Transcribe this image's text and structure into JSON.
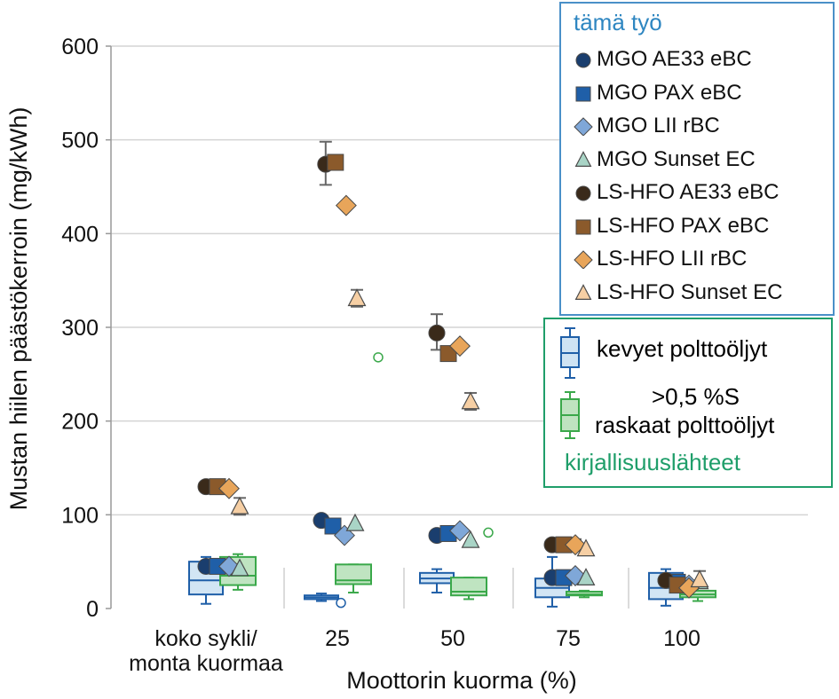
{
  "chart_data": {
    "type": "scatter",
    "ylabel": "Mustan hiilen päästökerroin (mg/kWh)",
    "xlabel": "Moottorin kuorma (%)",
    "ylim": [
      0,
      600
    ],
    "yticks": [
      0,
      100,
      200,
      300,
      400,
      500,
      600
    ],
    "grid": true,
    "categories": [
      [
        "koko sykli/",
        "monta kuormaa"
      ],
      "25",
      "50",
      "75",
      "100"
    ],
    "series": [
      {
        "name": "MGO AE33 eBC",
        "marker": "circle",
        "color": "#1a3e6e",
        "values": [
          45,
          94,
          78,
          33,
          30
        ]
      },
      {
        "name": "MGO PAX eBC",
        "marker": "square",
        "color": "#1f5fa8",
        "values": [
          45,
          88,
          80,
          33,
          28
        ]
      },
      {
        "name": "MGO LII rBC",
        "marker": "diamond",
        "color": "#7fa7d8",
        "values": [
          45,
          78,
          83,
          35,
          25
        ]
      },
      {
        "name": "MGO Sunset EC",
        "marker": "triangle",
        "color": "#a9d4c6",
        "values": [
          42,
          90,
          72,
          32,
          28
        ]
      },
      {
        "name": "LS-HFO AE33 eBC",
        "marker": "circle",
        "color": "#3a2a1a",
        "values": [
          130,
          474,
          294,
          68,
          30
        ]
      },
      {
        "name": "LS-HFO PAX eBC",
        "marker": "square",
        "color": "#8b5a2b",
        "values": [
          130,
          476,
          272,
          68,
          25
        ]
      },
      {
        "name": "LS-HFO LII rBC",
        "marker": "diamond",
        "color": "#e8a55a",
        "values": [
          128,
          430,
          280,
          68,
          22
        ]
      },
      {
        "name": "LS-HFO Sunset EC",
        "marker": "triangle",
        "color": "#f6cfa4",
        "values": [
          108,
          330,
          220,
          63,
          30
        ]
      }
    ],
    "error_bars": [
      {
        "series": "LS-HFO AE33 eBC",
        "category": "25",
        "low": 452,
        "high": 498
      },
      {
        "series": "LS-HFO Sunset EC",
        "category": "25",
        "low": 322,
        "high": 340
      },
      {
        "series": "LS-HFO AE33 eBC",
        "category": "50",
        "low": 276,
        "high": 314
      },
      {
        "series": "LS-HFO Sunset EC",
        "category": "50",
        "low": 212,
        "high": 230
      },
      {
        "series": "LS-HFO Sunset EC",
        "category": "koko sykli/monta kuormaa",
        "low": 100,
        "high": 118
      },
      {
        "series": "LS-HFO LII rBC",
        "category": "75",
        "low": 62,
        "high": 74
      },
      {
        "series": "LS-HFO Sunset EC",
        "category": "100",
        "low": 22,
        "high": 40
      }
    ],
    "boxplots": {
      "light_fuels": [
        {
          "category": "koko sykli/monta kuormaa",
          "min": 5,
          "q1": 15,
          "median": 30,
          "q3": 50,
          "max": 55
        },
        {
          "category": "25",
          "min": 8,
          "q1": 10,
          "median": 12,
          "q3": 14,
          "max": 16,
          "outliers": [
            6
          ]
        },
        {
          "category": "50",
          "min": 17,
          "q1": 27,
          "median": 32,
          "q3": 38,
          "max": 42
        },
        {
          "category": "75",
          "min": 2,
          "q1": 12,
          "median": 22,
          "q3": 32,
          "max": 55
        },
        {
          "category": "100",
          "min": 3,
          "q1": 10,
          "median": 22,
          "q3": 38,
          "max": 42
        }
      ],
      "heavy_fuels": [
        {
          "category": "koko sykli/monta kuormaa",
          "min": 20,
          "q1": 25,
          "median": 35,
          "q3": 55,
          "max": 58
        },
        {
          "category": "25",
          "min": 17,
          "q1": 26,
          "median": 30,
          "q3": 47,
          "max": 47,
          "outliers": [
            268
          ]
        },
        {
          "category": "50",
          "min": 10,
          "q1": 14,
          "median": 18,
          "q3": 33,
          "max": 33,
          "outliers": [
            81
          ]
        },
        {
          "category": "75",
          "min": 12,
          "q1": 14,
          "median": 15,
          "q3": 18,
          "max": 19
        },
        {
          "category": "100",
          "min": 8,
          "q1": 12,
          "median": 15,
          "q3": 19,
          "max": 22
        }
      ]
    }
  },
  "legend_this": {
    "title": "tämä työ",
    "title_color": "#2e86c1",
    "items": [
      "MGO AE33 eBC",
      "MGO PAX eBC",
      "MGO LII rBC",
      "MGO Sunset EC",
      "LS-HFO AE33 eBC",
      "LS-HFO PAX eBC",
      "LS-HFO LII rBC",
      "LS-HFO Sunset EC"
    ]
  },
  "legend_lit": {
    "light_label": "kevyet polttoöljyt",
    "heavy_label_line1": ">0,5 %S",
    "heavy_label_line2": "raskaat polttoöljyt",
    "title": "kirjallisuuslähteet",
    "title_color": "#1f9e6a",
    "light_color": "#1f5fa8",
    "heavy_color": "#3aa84a"
  }
}
